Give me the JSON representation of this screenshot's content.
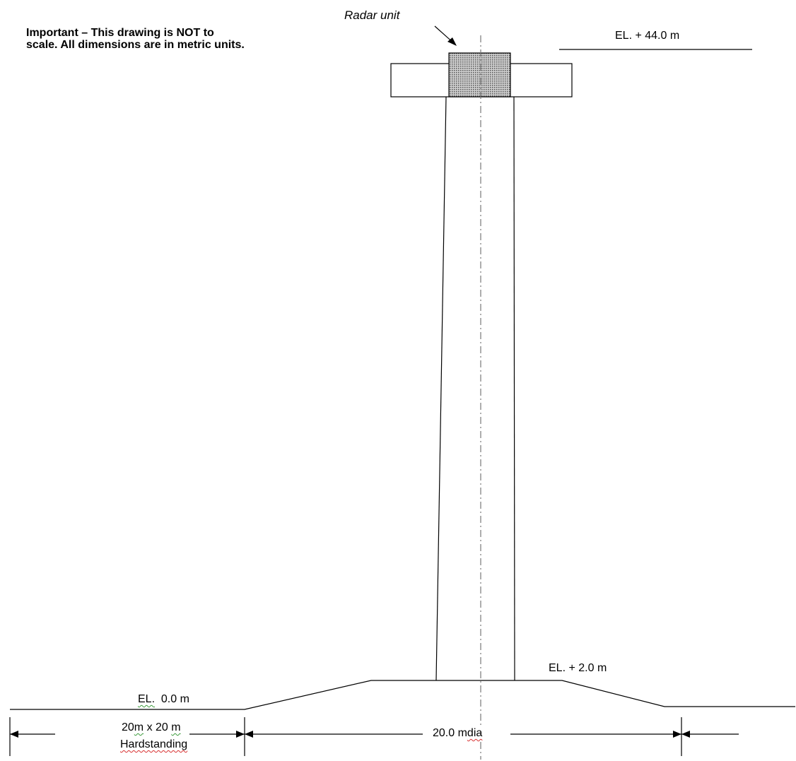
{
  "note": {
    "line1": "Important – This drawing is NOT to",
    "line2": "scale. All dimensions are in metric units."
  },
  "radar_label": "Radar unit",
  "elevations": {
    "top": "EL. + 44.0 m",
    "platform": "EL. + 2.0 m",
    "ground_prefix": "EL.",
    "ground_value": "0.0 m"
  },
  "hardstanding": {
    "num1": "20",
    "unit1": "m",
    "mid": "x 20",
    "unit2": "m",
    "line2": "Hardstanding"
  },
  "base_diameter": {
    "value": "20.0 m",
    "unit": "dia"
  },
  "colors": {
    "line": "#000000",
    "radar_fill": "#b8b8b8",
    "spell_red": "#d83030",
    "spell_green": "#3a9a3a"
  }
}
